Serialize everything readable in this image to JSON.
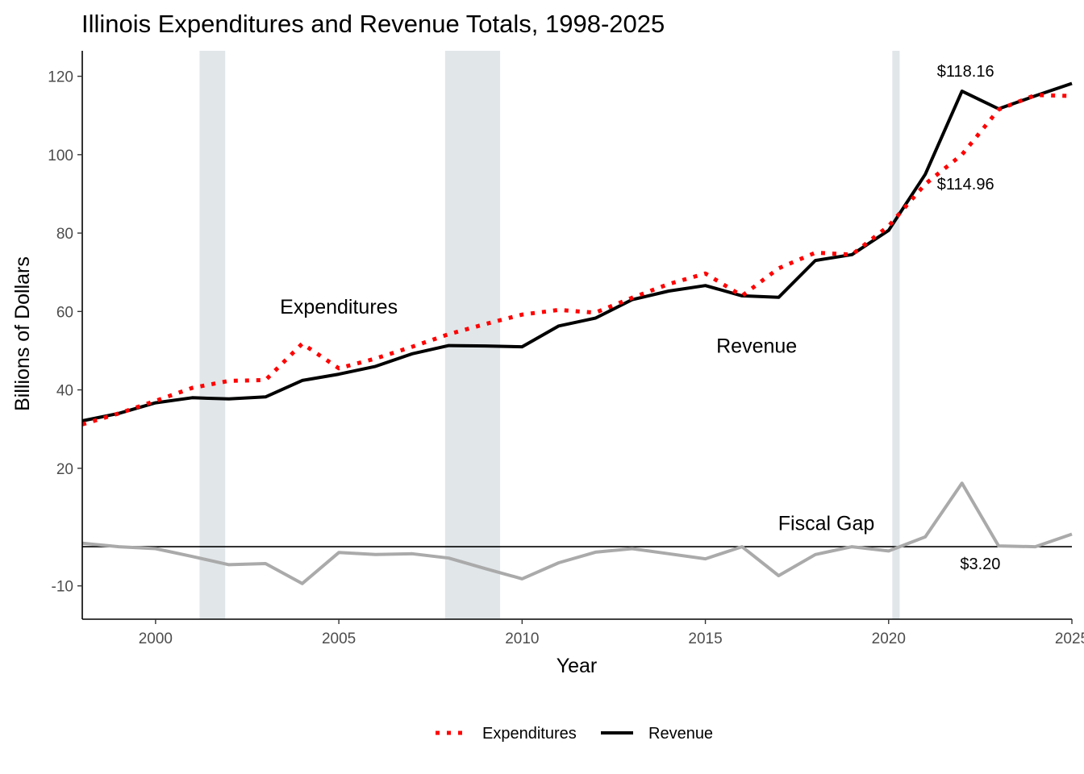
{
  "chart_data": {
    "type": "line",
    "title": "Illinois Expenditures and Revenue Totals, 1998-2025",
    "xlabel": "Year",
    "ylabel": "Billions of Dollars",
    "xlim": [
      1998,
      2025
    ],
    "ylim": [
      -18.5,
      126.5
    ],
    "x_ticks": [
      2000,
      2005,
      2010,
      2015,
      2020,
      2025
    ],
    "y_ticks": [
      -10,
      20,
      40,
      60,
      80,
      100,
      120
    ],
    "grid": false,
    "legend_position": "bottom",
    "recession_shading": [
      {
        "start": 2001.2,
        "end": 2001.9
      },
      {
        "start": 2007.9,
        "end": 2009.4
      },
      {
        "start": 2020.1,
        "end": 2020.3
      }
    ],
    "zero_line": 0,
    "series": [
      {
        "name": "Expenditures",
        "style": "dotted",
        "color": "#ff0000",
        "x": [
          1998,
          1999,
          2000,
          2001,
          2002,
          2003,
          2004,
          2005,
          2006,
          2007,
          2008,
          2009,
          2010,
          2011,
          2012,
          2013,
          2014,
          2015,
          2016,
          2017,
          2018,
          2019,
          2020,
          2021,
          2022,
          2023,
          2024,
          2025
        ],
        "values": [
          31.2,
          34.0,
          37.2,
          40.5,
          42.3,
          42.5,
          51.8,
          45.5,
          48.0,
          51.0,
          54.2,
          56.8,
          59.2,
          60.4,
          59.7,
          63.5,
          67.0,
          69.7,
          64.0,
          71.0,
          75.0,
          74.5,
          81.8,
          92.5,
          100.0,
          111.5,
          115.2,
          114.96
        ]
      },
      {
        "name": "Revenue",
        "style": "solid",
        "color": "#000000",
        "x": [
          1998,
          1999,
          2000,
          2001,
          2002,
          2003,
          2004,
          2005,
          2006,
          2007,
          2008,
          2009,
          2010,
          2011,
          2012,
          2013,
          2014,
          2015,
          2016,
          2017,
          2018,
          2019,
          2020,
          2021,
          2022,
          2023,
          2024,
          2025
        ],
        "values": [
          32.1,
          34.0,
          36.7,
          38.0,
          37.7,
          38.2,
          42.4,
          44.0,
          46.0,
          49.2,
          51.3,
          51.2,
          51.0,
          56.3,
          58.3,
          63.0,
          65.2,
          66.6,
          64.0,
          63.6,
          73.0,
          74.5,
          80.7,
          95.0,
          116.2,
          111.7,
          115.0,
          118.16
        ]
      },
      {
        "name": "Fiscal Gap",
        "style": "solid",
        "color": "#aaaaaa",
        "x": [
          1998,
          1999,
          2000,
          2001,
          2002,
          2003,
          2004,
          2005,
          2006,
          2007,
          2008,
          2009,
          2010,
          2011,
          2012,
          2013,
          2014,
          2015,
          2016,
          2017,
          2018,
          2019,
          2020,
          2021,
          2022,
          2023,
          2024,
          2025
        ],
        "values": [
          0.9,
          0,
          -0.5,
          -2.5,
          -4.6,
          -4.3,
          -9.4,
          -1.5,
          -2.0,
          -1.8,
          -2.9,
          -5.6,
          -8.2,
          -4.1,
          -1.4,
          -0.5,
          -1.8,
          -3.1,
          0,
          -7.4,
          -2.0,
          0,
          -1.1,
          2.5,
          16.2,
          0.2,
          0,
          3.2
        ]
      }
    ],
    "annotations": [
      {
        "text": "Expenditures",
        "x": 2005.0,
        "y": 59.5,
        "size": "large"
      },
      {
        "text": "Revenue",
        "x": 2016.4,
        "y": 49.5,
        "size": "large"
      },
      {
        "text": "Fiscal Gap",
        "x": 2018.3,
        "y": 4.2,
        "size": "large"
      },
      {
        "text": "$118.16",
        "x": 2022.1,
        "y": 119.9,
        "size": "small"
      },
      {
        "text": "$114.96",
        "x": 2022.1,
        "y": 91.1,
        "size": "small"
      },
      {
        "text": "$3.20",
        "x": 2022.5,
        "y": -5.7,
        "size": "small"
      }
    ],
    "legend": [
      {
        "label": "Expenditures",
        "style": "dotted",
        "color": "#ff0000"
      },
      {
        "label": "Revenue",
        "style": "solid",
        "color": "#000000"
      }
    ]
  }
}
